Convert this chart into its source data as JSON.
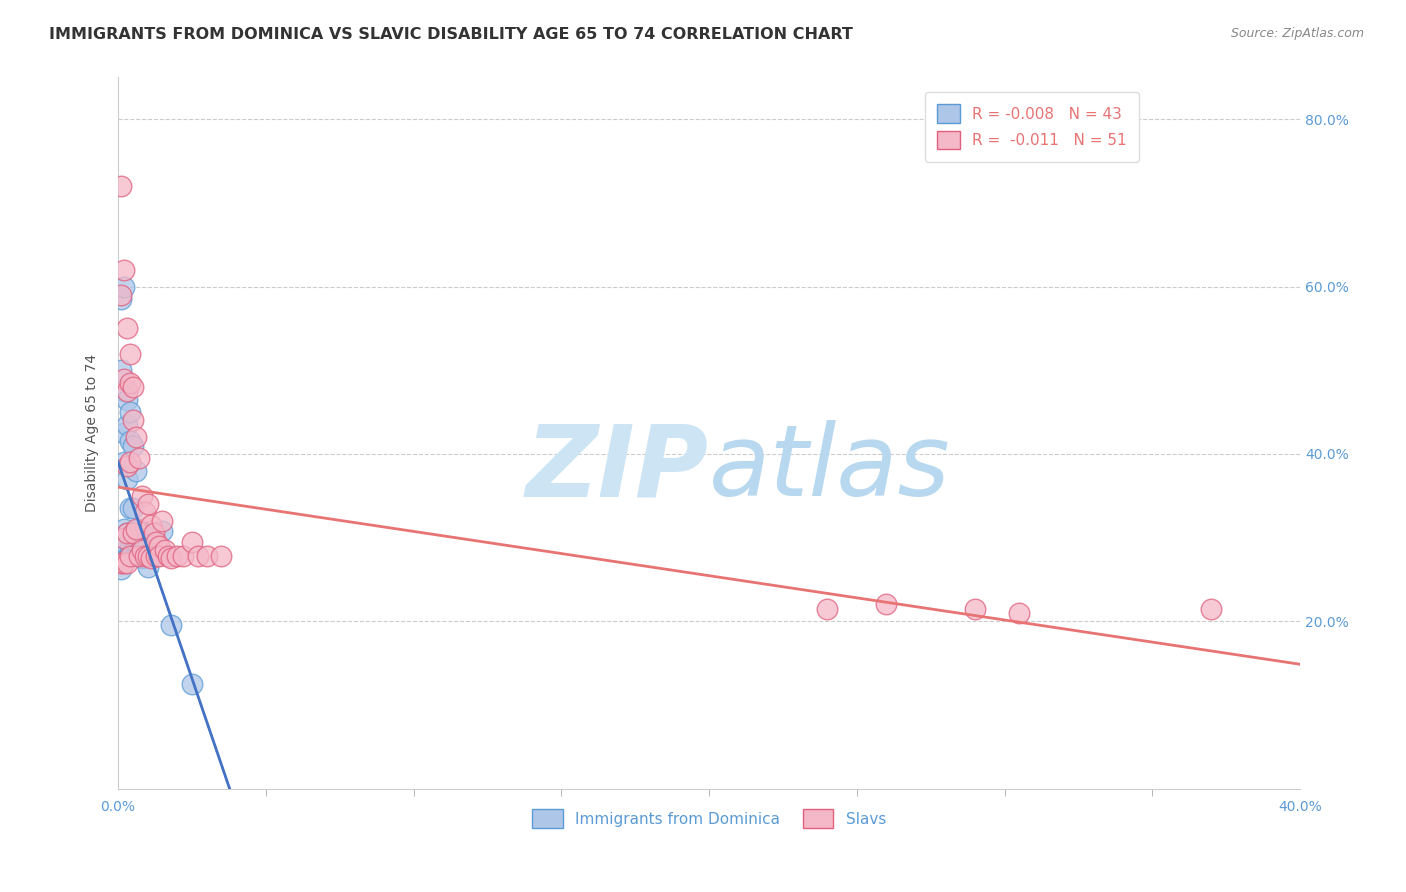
{
  "title": "IMMIGRANTS FROM DOMINICA VS SLAVIC DISABILITY AGE 65 TO 74 CORRELATION CHART",
  "source": "Source: ZipAtlas.com",
  "xlabel_label": "Immigrants from Dominica",
  "ylabel_label": "Disability Age 65 to 74",
  "xlim": [
    0.0,
    0.4
  ],
  "ylim": [
    0.0,
    0.85
  ],
  "xticks": [
    0.0,
    0.4
  ],
  "yticks": [
    0.2,
    0.4,
    0.6,
    0.8
  ],
  "xtick_labels": [
    "0.0%",
    "40.0%"
  ],
  "ytick_labels": [
    "20.0%",
    "40.0%",
    "60.0%",
    "80.0%"
  ],
  "legend_entry1_color": "#aec6e8",
  "legend_entry1_edge": "#5b9bd5",
  "legend_entry2_color": "#f4b8c8",
  "legend_entry2_edge": "#e0607e",
  "legend_r1": "-0.008",
  "legend_n1": "43",
  "legend_r2": "-0.011",
  "legend_n2": "51",
  "blue_scatter_x": [
    0.001,
    0.001,
    0.001,
    0.001,
    0.001,
    0.001,
    0.002,
    0.002,
    0.002,
    0.002,
    0.002,
    0.002,
    0.002,
    0.003,
    0.003,
    0.003,
    0.003,
    0.003,
    0.003,
    0.004,
    0.004,
    0.004,
    0.004,
    0.004,
    0.005,
    0.005,
    0.005,
    0.005,
    0.006,
    0.006,
    0.006,
    0.007,
    0.007,
    0.008,
    0.008,
    0.009,
    0.01,
    0.01,
    0.011,
    0.012,
    0.015,
    0.018,
    0.025
  ],
  "blue_scatter_y": [
    0.585,
    0.5,
    0.295,
    0.282,
    0.272,
    0.262,
    0.6,
    0.475,
    0.425,
    0.39,
    0.31,
    0.295,
    0.275,
    0.465,
    0.435,
    0.37,
    0.305,
    0.29,
    0.275,
    0.45,
    0.415,
    0.335,
    0.29,
    0.278,
    0.41,
    0.335,
    0.295,
    0.282,
    0.38,
    0.29,
    0.278,
    0.31,
    0.285,
    0.305,
    0.275,
    0.295,
    0.28,
    0.265,
    0.278,
    0.28,
    0.308,
    0.195,
    0.125
  ],
  "pink_scatter_x": [
    0.001,
    0.001,
    0.001,
    0.002,
    0.002,
    0.002,
    0.002,
    0.003,
    0.003,
    0.003,
    0.003,
    0.003,
    0.004,
    0.004,
    0.004,
    0.004,
    0.005,
    0.005,
    0.005,
    0.006,
    0.006,
    0.007,
    0.007,
    0.008,
    0.008,
    0.009,
    0.009,
    0.01,
    0.01,
    0.011,
    0.011,
    0.012,
    0.013,
    0.013,
    0.014,
    0.014,
    0.015,
    0.016,
    0.017,
    0.018,
    0.02,
    0.022,
    0.025,
    0.027,
    0.03,
    0.035,
    0.24,
    0.26,
    0.29,
    0.305,
    0.37
  ],
  "pink_scatter_y": [
    0.72,
    0.59,
    0.27,
    0.62,
    0.49,
    0.3,
    0.27,
    0.55,
    0.475,
    0.385,
    0.305,
    0.27,
    0.52,
    0.485,
    0.39,
    0.278,
    0.48,
    0.44,
    0.305,
    0.42,
    0.31,
    0.395,
    0.278,
    0.35,
    0.285,
    0.33,
    0.278,
    0.34,
    0.278,
    0.315,
    0.275,
    0.305,
    0.295,
    0.278,
    0.29,
    0.278,
    0.32,
    0.285,
    0.278,
    0.275,
    0.278,
    0.278,
    0.295,
    0.278,
    0.278,
    0.278,
    0.215,
    0.22,
    0.215,
    0.21,
    0.215
  ],
  "blue_line_color": "#4472c4",
  "pink_line_color": "#e87373",
  "blue_dash_color": "#7ab3d9",
  "watermark_color": "#cde4f5",
  "background_color": "#ffffff",
  "grid_color": "#cccccc",
  "tick_color": "#5b9bd5",
  "title_color": "#333333",
  "title_fontsize": 11.5,
  "source_color": "#888888",
  "axis_label_color": "#555555",
  "axis_label_fontsize": 10,
  "blue_line_x_end": 0.06
}
